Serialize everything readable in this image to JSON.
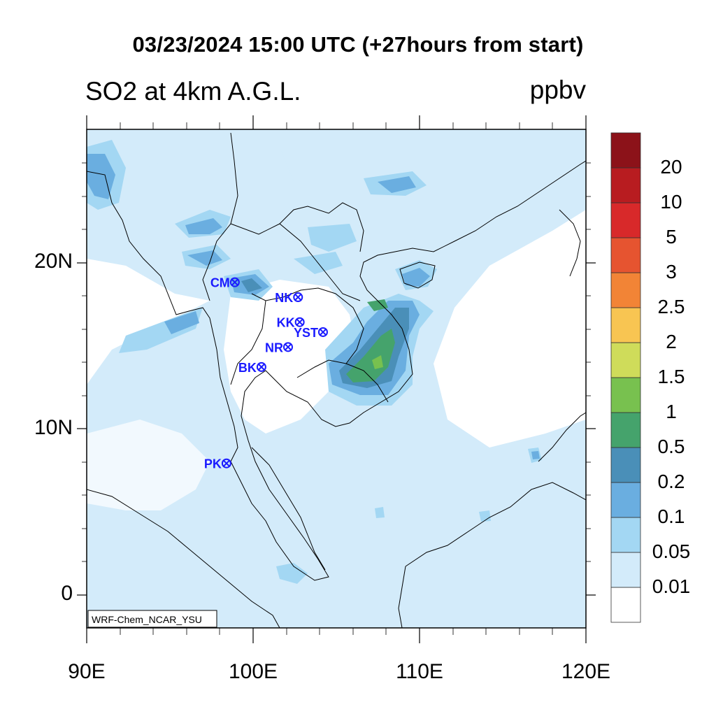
{
  "title": "03/23/2024 15:00 UTC (+27hours from start)",
  "subtitle_left": "SO2 at 4km A.G.L.",
  "subtitle_right": "ppbv",
  "credit": "WRF-Chem_NCAR_YSU",
  "lat_ticks": [
    {
      "label": "20N",
      "lat": 20
    },
    {
      "label": "10N",
      "lat": 10
    },
    {
      "label": "0",
      "lat": 0
    }
  ],
  "lon_ticks": [
    {
      "label": "90E",
      "lon": 90
    },
    {
      "label": "100E",
      "lon": 100
    },
    {
      "label": "110E",
      "lon": 110
    },
    {
      "label": "120E",
      "lon": 120
    }
  ],
  "colorbar": {
    "levels": [
      "0.01",
      "0.05",
      "0.1",
      "0.2",
      "0.5",
      "1",
      "1.5",
      "2",
      "2.5",
      "3",
      "5",
      "10",
      "20"
    ],
    "colors": [
      "#ffffff",
      "#d3ebfa",
      "#a3d7f3",
      "#6aaee0",
      "#4a8fb8",
      "#45a36c",
      "#78c14f",
      "#cfdc5a",
      "#f8c552",
      "#f28436",
      "#e65430",
      "#d8292a",
      "#b81c20",
      "#8c1219"
    ]
  },
  "stations": [
    {
      "name": "CM",
      "lat": 18.8,
      "lon": 98.9
    },
    {
      "name": "NK",
      "lat": 17.9,
      "lon": 102.7
    },
    {
      "name": "KK",
      "lat": 16.4,
      "lon": 102.8
    },
    {
      "name": "YST",
      "lat": 15.8,
      "lon": 104.2
    },
    {
      "name": "NR",
      "lat": 14.9,
      "lon": 102.1
    },
    {
      "name": "BK",
      "lat": 13.7,
      "lon": 100.5
    },
    {
      "name": "PK",
      "lat": 7.9,
      "lon": 98.4
    }
  ]
}
